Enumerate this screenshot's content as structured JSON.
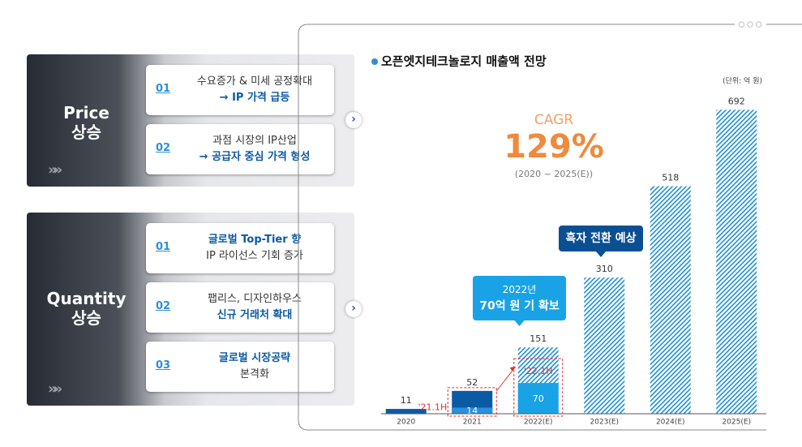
{
  "panels": [
    {
      "title": [
        "Price",
        "상승"
      ],
      "items": [
        {
          "num": "01",
          "lines": [
            "수요증가 & 미세 공정확대",
            "→ IP 가격 급등"
          ],
          "emphasis": 1
        },
        {
          "num": "02",
          "lines": [
            "과점 시장의 IP산업",
            "→ 공급자 중심 가격 형성"
          ],
          "emphasis": 1
        }
      ]
    },
    {
      "title": [
        "Quantity",
        "상승"
      ],
      "items": [
        {
          "num": "01",
          "lines": [
            "글로벌 Top-Tier 향",
            "IP 라이선스 기회 증가"
          ],
          "emphasis": 0
        },
        {
          "num": "02",
          "lines": [
            "팹리스, 디자인하우스",
            "신규 거래처 확대"
          ],
          "emphasis": 1
        },
        {
          "num": "03",
          "lines": [
            "글로벌 시장공략",
            "본격화"
          ],
          "emphasis": 0
        }
      ]
    }
  ],
  "chart_data": {
    "type": "bar",
    "title": "오픈엣지테크놀로지 매출액 전망",
    "unit": "(단위: 억 원)",
    "categories": [
      "2020",
      "2021",
      "2022(E)",
      "2023(E)",
      "2024(E)",
      "2025(E)"
    ],
    "values": [
      11,
      52,
      151,
      310,
      518,
      692
    ],
    "hatched": [
      false,
      false,
      true,
      true,
      true,
      true
    ],
    "color": "#0b5aa5",
    "hatch_color": "#1f8fd6",
    "half_year": {
      "values": [
        null,
        14,
        70,
        null,
        null,
        null
      ],
      "labels": [
        null,
        "'21.1H",
        "'22.1H",
        null,
        null,
        null
      ],
      "colors": [
        null,
        "#2b8fd9",
        "#19a3e6",
        null,
        null,
        null
      ]
    },
    "ylim": [
      0,
      700
    ],
    "cagr": {
      "label": "CAGR",
      "value": "129%",
      "period": "(2020 ~ 2025(E))"
    },
    "callouts": [
      {
        "lines": [
          "흑자 전환 예상"
        ]
      },
      {
        "lines": [
          "2022년",
          "70억 원 기 확보"
        ]
      }
    ]
  }
}
